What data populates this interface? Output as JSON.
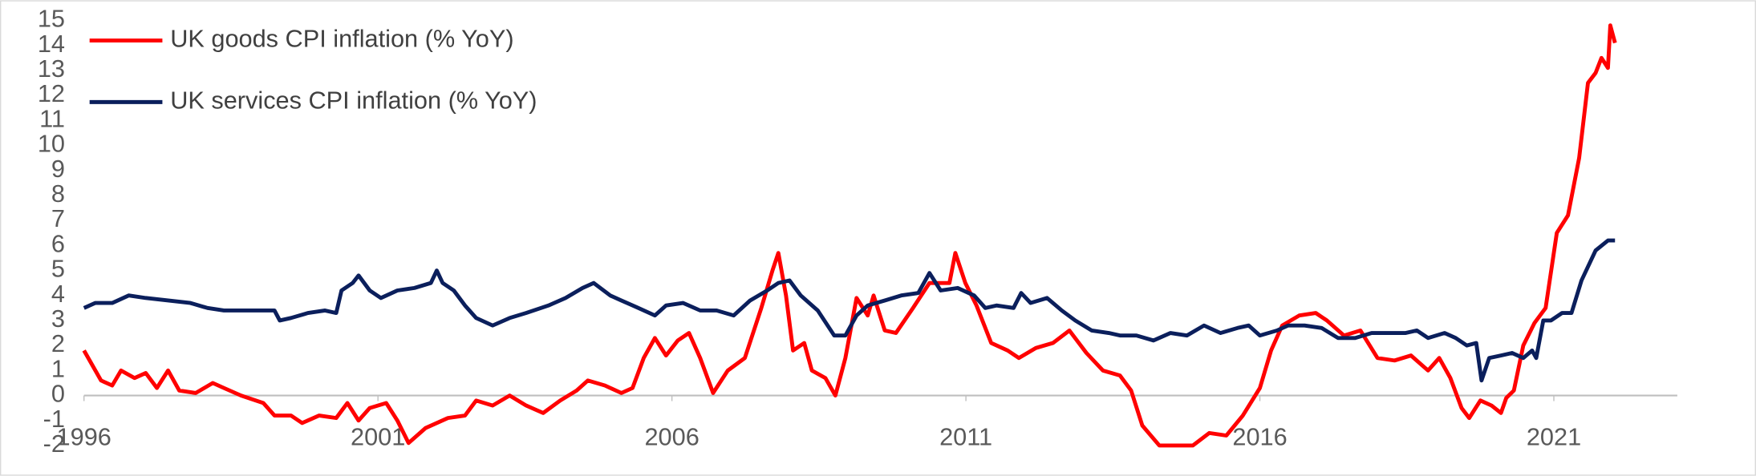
{
  "chart_data": {
    "type": "line",
    "xlim": [
      1996,
      2023.1
    ],
    "xticks": [
      1996,
      2001,
      2006,
      2011,
      2016,
      2021
    ],
    "ylim": [
      -2,
      15
    ],
    "yticks": [
      -2,
      -1,
      0,
      1,
      2,
      3,
      4,
      5,
      6,
      7,
      8,
      9,
      10,
      11,
      12,
      13,
      14,
      15
    ],
    "legend": "upper left",
    "series": [
      {
        "name": "UK goods CPI inflation (% YoY)",
        "color": "#ff0000",
        "x": [
          1996.0,
          1996.29,
          1996.48,
          1996.63,
          1996.86,
          1997.05,
          1997.24,
          1997.43,
          1997.62,
          1997.9,
          1998.19,
          1998.38,
          1998.67,
          1999.05,
          1999.24,
          1999.52,
          1999.71,
          2000.0,
          2000.29,
          2000.48,
          2000.67,
          2000.86,
          2001.14,
          2001.33,
          2001.52,
          2001.81,
          2002.19,
          2002.48,
          2002.67,
          2002.95,
          2003.24,
          2003.52,
          2003.81,
          2004.1,
          2004.38,
          2004.57,
          2004.86,
          2005.14,
          2005.33,
          2005.52,
          2005.71,
          2005.9,
          2006.1,
          2006.29,
          2006.48,
          2006.7,
          2006.95,
          2007.24,
          2007.52,
          2007.71,
          2007.81,
          2007.94,
          2008.06,
          2008.25,
          2008.38,
          2008.61,
          2008.78,
          2008.95,
          2009.14,
          2009.33,
          2009.43,
          2009.62,
          2009.81,
          2010.1,
          2010.38,
          2010.72,
          2010.82,
          2010.99,
          2011.18,
          2011.43,
          2011.71,
          2011.9,
          2012.19,
          2012.48,
          2012.76,
          2013.05,
          2013.33,
          2013.62,
          2013.81,
          2014.0,
          2014.29,
          2014.57,
          2014.86,
          2015.14,
          2015.43,
          2015.71,
          2016.0,
          2016.19,
          2016.38,
          2016.67,
          2016.95,
          2017.14,
          2017.43,
          2017.71,
          2018.0,
          2018.29,
          2018.57,
          2018.86,
          2019.05,
          2019.24,
          2019.43,
          2019.56,
          2019.75,
          2019.94,
          2020.1,
          2020.19,
          2020.32,
          2020.48,
          2020.67,
          2020.86,
          2021.05,
          2021.24,
          2021.43,
          2021.58,
          2021.71,
          2021.81,
          2021.92,
          2021.96,
          2022.04
        ],
        "values": [
          1.8,
          0.6,
          0.4,
          1.0,
          0.7,
          0.9,
          0.3,
          1.0,
          0.2,
          0.1,
          0.5,
          0.3,
          0.0,
          -0.3,
          -0.8,
          -0.8,
          -1.1,
          -0.8,
          -0.9,
          -0.3,
          -1.0,
          -0.5,
          -0.3,
          -1.0,
          -1.9,
          -1.3,
          -0.9,
          -0.8,
          -0.2,
          -0.4,
          0.0,
          -0.4,
          -0.7,
          -0.2,
          0.2,
          0.6,
          0.4,
          0.1,
          0.3,
          1.5,
          2.3,
          1.6,
          2.2,
          2.5,
          1.5,
          0.1,
          1.0,
          1.5,
          3.5,
          5.0,
          5.7,
          4.0,
          1.8,
          2.1,
          1.0,
          0.7,
          0.0,
          1.5,
          3.9,
          3.2,
          4.0,
          2.6,
          2.5,
          3.5,
          4.5,
          4.5,
          5.7,
          4.5,
          3.6,
          2.1,
          1.8,
          1.5,
          1.9,
          2.1,
          2.6,
          1.7,
          1.0,
          0.8,
          0.2,
          -1.2,
          -2.0,
          -2.0,
          -2.0,
          -1.5,
          -1.6,
          -0.8,
          0.3,
          1.8,
          2.8,
          3.2,
          3.3,
          3.0,
          2.4,
          2.6,
          1.5,
          1.4,
          1.6,
          1.0,
          1.5,
          0.7,
          -0.5,
          -0.9,
          -0.2,
          -0.4,
          -0.7,
          -0.1,
          0.2,
          2.0,
          2.9,
          3.5,
          6.5,
          7.2,
          9.5,
          12.5,
          12.9,
          13.5,
          13.1,
          14.8,
          14.1
        ]
      },
      {
        "name": "UK services CPI inflation (% YoY)",
        "color": "#0b1f5c",
        "x": [
          1996.0,
          1996.19,
          1996.48,
          1996.76,
          1997.05,
          1997.43,
          1997.81,
          1998.1,
          1998.38,
          1999.24,
          1999.33,
          1999.52,
          1999.81,
          2000.1,
          2000.29,
          2000.38,
          2000.57,
          2000.67,
          2000.86,
          2001.05,
          2001.33,
          2001.62,
          2001.9,
          2002.0,
          2002.1,
          2002.29,
          2002.48,
          2002.67,
          2002.95,
          2003.24,
          2003.52,
          2003.9,
          2004.19,
          2004.48,
          2004.67,
          2004.95,
          2005.14,
          2005.43,
          2005.71,
          2005.9,
          2006.19,
          2006.48,
          2006.76,
          2007.05,
          2007.33,
          2007.62,
          2007.81,
          2008.0,
          2008.19,
          2008.48,
          2008.76,
          2008.95,
          2009.14,
          2009.33,
          2009.62,
          2009.9,
          2010.19,
          2010.38,
          2010.57,
          2010.86,
          2011.14,
          2011.33,
          2011.52,
          2011.81,
          2011.94,
          2012.1,
          2012.38,
          2012.63,
          2012.86,
          2013.14,
          2013.43,
          2013.62,
          2013.9,
          2014.19,
          2014.48,
          2014.76,
          2015.05,
          2015.33,
          2015.62,
          2015.81,
          2016.0,
          2016.29,
          2016.48,
          2016.76,
          2017.05,
          2017.33,
          2017.62,
          2017.9,
          2018.19,
          2018.48,
          2018.67,
          2018.86,
          2019.14,
          2019.33,
          2019.52,
          2019.68,
          2019.77,
          2019.9,
          2020.1,
          2020.29,
          2020.48,
          2020.63,
          2020.7,
          2020.82,
          2020.95,
          2021.14,
          2021.3,
          2021.47,
          2021.71,
          2021.92,
          2022.04
        ],
        "values": [
          3.5,
          3.7,
          3.7,
          4.0,
          3.9,
          3.8,
          3.7,
          3.5,
          3.4,
          3.4,
          3.0,
          3.1,
          3.3,
          3.4,
          3.3,
          4.2,
          4.5,
          4.8,
          4.2,
          3.9,
          4.2,
          4.3,
          4.5,
          5.0,
          4.5,
          4.2,
          3.6,
          3.1,
          2.8,
          3.1,
          3.3,
          3.6,
          3.9,
          4.3,
          4.5,
          4.0,
          3.8,
          3.5,
          3.2,
          3.6,
          3.7,
          3.4,
          3.4,
          3.2,
          3.8,
          4.2,
          4.5,
          4.6,
          4.0,
          3.4,
          2.4,
          2.4,
          3.2,
          3.6,
          3.8,
          4.0,
          4.1,
          4.9,
          4.2,
          4.3,
          4.0,
          3.5,
          3.6,
          3.5,
          4.1,
          3.7,
          3.9,
          3.4,
          3.0,
          2.6,
          2.5,
          2.4,
          2.4,
          2.2,
          2.5,
          2.4,
          2.8,
          2.5,
          2.7,
          2.8,
          2.4,
          2.6,
          2.8,
          2.8,
          2.7,
          2.3,
          2.3,
          2.5,
          2.5,
          2.5,
          2.6,
          2.3,
          2.5,
          2.3,
          2.0,
          2.1,
          0.6,
          1.5,
          1.6,
          1.7,
          1.5,
          1.8,
          1.5,
          3.0,
          3.0,
          3.3,
          3.3,
          4.6,
          5.8,
          6.2,
          6.2
        ]
      }
    ]
  }
}
